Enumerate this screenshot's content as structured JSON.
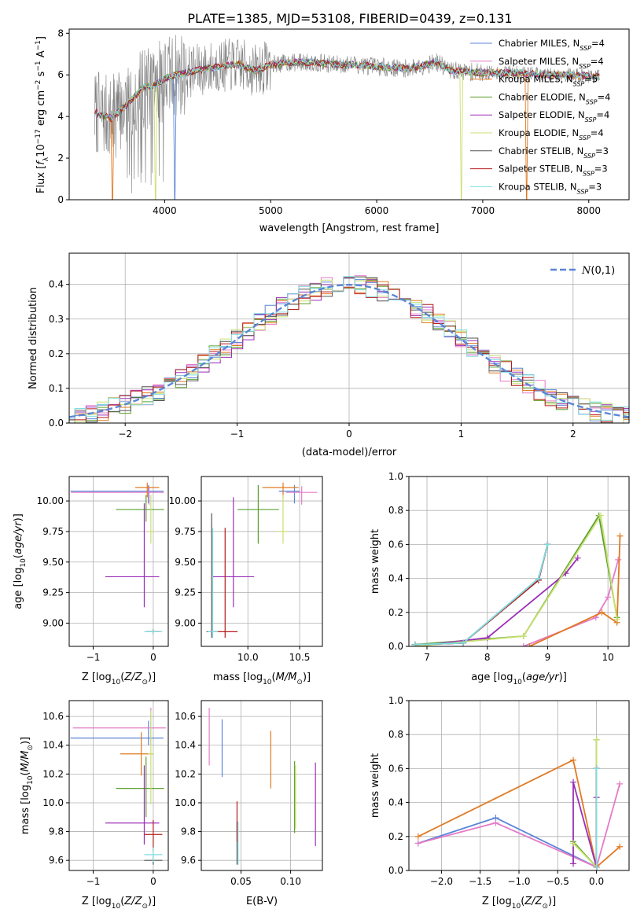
{
  "figure_title": "PLATE=1385, MJD=53108, FIBERID=0439, z=0.131",
  "colors": {
    "Chabrier MILES": "#5b86d6",
    "Salpeter MILES": "#e57bc8",
    "Kroupa MILES": "#e07a22",
    "Chabrier ELODIE": "#5aa02c",
    "Salpeter ELODIE": "#9b2fb8",
    "Kroupa ELODIE": "#c8e070",
    "Chabrier STELIB": "#555555",
    "Salpeter STELIB": "#b51b1b",
    "Kroupa STELIB": "#7fdde0",
    "observed": "#808080",
    "gaussian": "#5b86d6"
  },
  "chart_data": [
    {
      "id": "spectrum",
      "type": "line",
      "xlabel": "wavelength [Angstrom, rest frame]",
      "ylabel": "Flux [f_λ10^-17 erg cm^-2 s^-1 A^-1]",
      "xlim": [
        3100,
        8380
      ],
      "ylim": [
        0,
        8.2
      ],
      "xticks": [
        4000,
        5000,
        6000,
        7000,
        8000
      ],
      "yticks": [
        0,
        2,
        4,
        6,
        8
      ],
      "legend_position": "right",
      "legend": [
        {
          "model": "Chabrier MILES",
          "nssp": "4"
        },
        {
          "model": "Salpeter MILES",
          "nssp": "4"
        },
        {
          "model": "Kroupa MILES",
          "nssp": "5"
        },
        {
          "model": "Chabrier ELODIE",
          "nssp": "4"
        },
        {
          "model": "Salpeter ELODIE",
          "nssp": "4"
        },
        {
          "model": "Kroupa ELODIE",
          "nssp": "4"
        },
        {
          "model": "Chabrier STELIB",
          "nssp": "3"
        },
        {
          "model": "Salpeter STELIB",
          "nssp": "3"
        },
        {
          "model": "Kroupa STELIB",
          "nssp": "3"
        }
      ],
      "continuum_points": [
        [
          3340,
          4.2
        ],
        [
          3500,
          3.9
        ],
        [
          3650,
          4.6
        ],
        [
          3800,
          5.4
        ],
        [
          3900,
          5.5
        ],
        [
          4000,
          5.8
        ],
        [
          4100,
          6.0
        ],
        [
          4300,
          6.2
        ],
        [
          4500,
          6.4
        ],
        [
          4700,
          6.5
        ],
        [
          4861,
          6.2
        ],
        [
          5000,
          6.5
        ],
        [
          5200,
          6.6
        ],
        [
          5400,
          6.6
        ],
        [
          5600,
          6.5
        ],
        [
          5800,
          6.5
        ],
        [
          6000,
          6.4
        ],
        [
          6300,
          6.3
        ],
        [
          6563,
          6.6
        ],
        [
          6700,
          6.2
        ],
        [
          7000,
          6.1
        ],
        [
          7300,
          6.1
        ],
        [
          7600,
          6.0
        ],
        [
          7800,
          6.0
        ],
        [
          8100,
          5.9
        ]
      ],
      "noise_amplitude_blue": 2.6,
      "noise_amplitude_red": 0.9,
      "model_dropouts": [
        {
          "model": "Kroupa MILES",
          "x": 3510
        },
        {
          "model": "Kroupa ELODIE",
          "x": 3920
        },
        {
          "model": "Chabrier MILES",
          "x": 4100
        },
        {
          "model": "Kroupa ELODIE",
          "x": 6800
        },
        {
          "model": "Kroupa MILES",
          "x": 7420
        }
      ]
    },
    {
      "id": "residuals",
      "type": "step",
      "xlabel": "(data-model)/error",
      "ylabel": "Normed distribution",
      "xlim": [
        -2.5,
        2.5
      ],
      "ylim": [
        0,
        0.49
      ],
      "xticks": [
        -2,
        -1,
        0,
        1,
        2
      ],
      "yticks": [
        0.0,
        0.1,
        0.2,
        0.3,
        0.4
      ],
      "grid": true,
      "legend_position": "top-right",
      "legend": "N(0,1)",
      "bin_width": 0.1
    },
    {
      "id": "age_vs_Z",
      "type": "errorbar",
      "xlabel": "Z [log10(Z/Z⊙)]",
      "ylabel": "age  [log10(age/yr)]",
      "xlim": [
        -1.4,
        0.25
      ],
      "ylim": [
        8.81,
        10.2
      ],
      "xticks": [
        -1,
        0
      ],
      "yticks": [
        9.0,
        9.25,
        9.5,
        9.75,
        10.0
      ],
      "grid": true,
      "points": [
        {
          "model": "Chabrier MILES",
          "x": -0.08,
          "y": 10.08,
          "xerr": [
            1.3,
            0.25
          ],
          "yerr": [
            0.1,
            0.05
          ]
        },
        {
          "model": "Salpeter MILES",
          "x": -0.07,
          "y": 10.07,
          "xerr": [
            1.3,
            0.25
          ],
          "yerr": [
            0.1,
            0.05
          ]
        },
        {
          "model": "Kroupa MILES",
          "x": -0.1,
          "y": 10.11,
          "xerr": [
            0.2,
            0.2
          ],
          "yerr": [
            0.08,
            0.04
          ]
        },
        {
          "model": "Chabrier ELODIE",
          "x": -0.12,
          "y": 9.93,
          "xerr": [
            0.5,
            0.3
          ],
          "yerr": [
            0.1,
            0.12
          ]
        },
        {
          "model": "Salpeter ELODIE",
          "x": -0.15,
          "y": 9.38,
          "xerr": [
            0.65,
            0.25
          ],
          "yerr": [
            0.25,
            0.6
          ]
        },
        {
          "model": "Kroupa ELODIE",
          "x": -0.04,
          "y": 9.75,
          "xerr": [
            0.05,
            0.05
          ],
          "yerr": [
            0.1,
            0.3
          ]
        },
        {
          "model": "Chabrier STELIB",
          "x": 0.0,
          "y": 8.93,
          "xerr": [
            0.1,
            0.1
          ],
          "yerr": [
            0.02,
            0.02
          ]
        },
        {
          "model": "Salpeter STELIB",
          "x": 0.0,
          "y": 8.93,
          "xerr": [
            0.12,
            0.12
          ],
          "yerr": [
            0.02,
            0.02
          ]
        },
        {
          "model": "Kroupa STELIB",
          "x": 0.0,
          "y": 8.93,
          "xerr": [
            0.15,
            0.15
          ],
          "yerr": [
            0.02,
            0.02
          ]
        }
      ]
    },
    {
      "id": "age_vs_mass",
      "type": "errorbar",
      "xlabel": "mass [log10(M/M⊙)]",
      "ylabel": "",
      "xlim": [
        9.55,
        10.72
      ],
      "ylim": [
        8.81,
        10.2
      ],
      "xticks": [
        10.0,
        10.5
      ],
      "yticks": [
        9.0,
        9.25,
        9.5,
        9.75,
        10.0
      ],
      "grid": true,
      "points": [
        {
          "model": "Chabrier MILES",
          "x": 10.45,
          "y": 10.08,
          "xerr": [
            0.15,
            0.05
          ],
          "yerr": [
            0.1,
            0.05
          ]
        },
        {
          "model": "Salpeter MILES",
          "x": 10.52,
          "y": 10.07,
          "xerr": [
            0.15,
            0.15
          ],
          "yerr": [
            0.1,
            0.05
          ]
        },
        {
          "model": "Kroupa MILES",
          "x": 10.34,
          "y": 10.11,
          "xerr": [
            0.2,
            0.15
          ],
          "yerr": [
            0.08,
            0.04
          ]
        },
        {
          "model": "Chabrier ELODIE",
          "x": 10.1,
          "y": 9.93,
          "xerr": [
            0.2,
            0.2
          ],
          "yerr": [
            0.28,
            0.2
          ]
        },
        {
          "model": "Salpeter ELODIE",
          "x": 9.86,
          "y": 9.38,
          "xerr": [
            0.2,
            0.2
          ],
          "yerr": [
            0.25,
            0.65
          ]
        },
        {
          "model": "Kroupa ELODIE",
          "x": 10.34,
          "y": 9.75,
          "xerr": [
            0.05,
            0.05
          ],
          "yerr": [
            0.1,
            0.3
          ]
        },
        {
          "model": "Chabrier STELIB",
          "x": 9.65,
          "y": 8.93,
          "xerr": [
            0.05,
            0.05
          ],
          "yerr": [
            0.05,
            0.97
          ]
        },
        {
          "model": "Salpeter STELIB",
          "x": 9.78,
          "y": 8.93,
          "xerr": [
            0.1,
            0.12
          ],
          "yerr": [
            0.05,
            0.85
          ]
        },
        {
          "model": "Kroupa STELIB",
          "x": 9.66,
          "y": 8.93,
          "xerr": [
            0.05,
            0.05
          ],
          "yerr": [
            0.05,
            0.85
          ]
        }
      ]
    },
    {
      "id": "weight_vs_age",
      "type": "line",
      "xlabel": "age  [log10(age/yr)]",
      "ylabel": "mass weight",
      "xlim": [
        6.7,
        10.35
      ],
      "ylim": [
        0,
        1.0
      ],
      "xticks": [
        7,
        8,
        9,
        10
      ],
      "yticks": [
        0.0,
        0.2,
        0.4,
        0.6,
        0.8,
        1.0
      ],
      "grid": true,
      "series": [
        {
          "model": "Chabrier MILES",
          "x": [
            6.8,
            7.6,
            8.85,
            9.0
          ],
          "y": [
            0.01,
            0.02,
            0.4,
            0.6
          ]
        },
        {
          "model": "Salpeter MILES",
          "x": [
            8.6,
            9.8,
            10.0,
            10.17
          ],
          "y": [
            0.0,
            0.17,
            0.29,
            0.51
          ]
        },
        {
          "model": "Kroupa MILES",
          "x": [
            8.7,
            9.9,
            10.15,
            10.2
          ],
          "y": [
            0.0,
            0.2,
            0.14,
            0.65
          ]
        },
        {
          "model": "Chabrier ELODIE",
          "x": [
            6.8,
            8.6,
            9.85,
            10.15
          ],
          "y": [
            0.01,
            0.06,
            0.77,
            0.17
          ]
        },
        {
          "model": "Salpeter ELODIE",
          "x": [
            6.8,
            8.0,
            9.3,
            9.5
          ],
          "y": [
            0.0,
            0.05,
            0.43,
            0.52
          ]
        },
        {
          "model": "Kroupa ELODIE",
          "x": [
            6.8,
            8.6,
            9.88,
            10.15
          ],
          "y": [
            0.0,
            0.06,
            0.77,
            0.16
          ]
        },
        {
          "model": "Chabrier STELIB",
          "x": [
            6.8,
            7.6,
            8.85,
            9.0
          ],
          "y": [
            0.01,
            0.02,
            0.39,
            0.6
          ]
        },
        {
          "model": "Salpeter STELIB",
          "x": [
            6.8,
            7.6,
            8.85,
            9.0
          ],
          "y": [
            0.01,
            0.02,
            0.39,
            0.6
          ]
        },
        {
          "model": "Kroupa STELIB",
          "x": [
            6.8,
            7.6,
            8.85,
            9.0
          ],
          "y": [
            0.01,
            0.02,
            0.4,
            0.6
          ]
        }
      ]
    },
    {
      "id": "mass_vs_Z",
      "type": "errorbar",
      "xlabel": "Z [log10(Z/Z⊙)]",
      "ylabel": "mass [log10(M/M⊙)]",
      "xlim": [
        -1.4,
        0.25
      ],
      "ylim": [
        9.53,
        10.71
      ],
      "xticks": [
        -1,
        0
      ],
      "yticks": [
        9.6,
        9.8,
        10.0,
        10.2,
        10.4,
        10.6
      ],
      "grid": true,
      "points": [
        {
          "model": "Chabrier MILES",
          "x": -0.08,
          "y": 10.45,
          "xerr": [
            1.3,
            0.25
          ],
          "yerr": [
            0.05,
            0.12
          ]
        },
        {
          "model": "Salpeter MILES",
          "x": -0.04,
          "y": 10.52,
          "xerr": [
            1.3,
            0.25
          ],
          "yerr": [
            0.12,
            0.14
          ]
        },
        {
          "model": "Kroupa MILES",
          "x": -0.2,
          "y": 10.34,
          "xerr": [
            0.35,
            0.2
          ],
          "yerr": [
            0.15,
            0.15
          ]
        },
        {
          "model": "Chabrier ELODIE",
          "x": -0.12,
          "y": 10.1,
          "xerr": [
            0.5,
            0.3
          ],
          "yerr": [
            0.2,
            0.22
          ]
        },
        {
          "model": "Salpeter ELODIE",
          "x": -0.15,
          "y": 9.86,
          "xerr": [
            0.65,
            0.25
          ],
          "yerr": [
            0.15,
            0.4
          ]
        },
        {
          "model": "Kroupa ELODIE",
          "x": -0.04,
          "y": 10.34,
          "xerr": [
            0.05,
            0.05
          ],
          "yerr": [
            0.35,
            0.3
          ]
        },
        {
          "model": "Chabrier STELIB",
          "x": 0.0,
          "y": 9.6,
          "xerr": [
            0.15,
            0.15
          ],
          "yerr": [
            0.03,
            0.03
          ]
        },
        {
          "model": "Salpeter STELIB",
          "x": 0.0,
          "y": 9.78,
          "xerr": [
            0.15,
            0.15
          ],
          "yerr": [
            0.12,
            0.1
          ]
        },
        {
          "model": "Kroupa STELIB",
          "x": 0.0,
          "y": 9.64,
          "xerr": [
            0.15,
            0.15
          ],
          "yerr": [
            0.05,
            0.05
          ]
        }
      ]
    },
    {
      "id": "mass_vs_EBV",
      "type": "errorbar",
      "xlabel": "E(B-V)",
      "ylabel": "",
      "xlim": [
        0.01,
        0.132
      ],
      "ylim": [
        9.53,
        10.71
      ],
      "xticks": [
        0.05,
        0.1
      ],
      "yticks": [
        9.6,
        9.8,
        10.0,
        10.2,
        10.4,
        10.6
      ],
      "grid": true,
      "points": [
        {
          "model": "Chabrier MILES",
          "x": 0.031,
          "y": 10.38,
          "xerr": [
            0,
            0
          ],
          "yerr": [
            0.2,
            0.2
          ]
        },
        {
          "model": "Salpeter MILES",
          "x": 0.018,
          "y": 10.46,
          "xerr": [
            0,
            0
          ],
          "yerr": [
            0.2,
            0.2
          ]
        },
        {
          "model": "Kroupa MILES",
          "x": 0.08,
          "y": 10.3,
          "xerr": [
            0,
            0
          ],
          "yerr": [
            0.2,
            0.2
          ]
        },
        {
          "model": "Chabrier ELODIE",
          "x": 0.104,
          "y": 10.04,
          "xerr": [
            0,
            0
          ],
          "yerr": [
            0.25,
            0.25
          ]
        },
        {
          "model": "Salpeter ELODIE",
          "x": 0.125,
          "y": 9.99,
          "xerr": [
            0,
            0
          ],
          "yerr": [
            0.29,
            0.29
          ]
        },
        {
          "model": "Kroupa ELODIE",
          "x": 0.105,
          "y": 10.04,
          "xerr": [
            0,
            0
          ],
          "yerr": [
            0.22,
            0.22
          ]
        },
        {
          "model": "Chabrier STELIB",
          "x": 0.046,
          "y": 9.72,
          "xerr": [
            0,
            0
          ],
          "yerr": [
            0.15,
            0.15
          ]
        },
        {
          "model": "Salpeter STELIB",
          "x": 0.046,
          "y": 9.87,
          "xerr": [
            0,
            0
          ],
          "yerr": [
            0.14,
            0.14
          ]
        },
        {
          "model": "Kroupa STELIB",
          "x": 0.047,
          "y": 9.72,
          "xerr": [
            0,
            0
          ],
          "yerr": [
            0.15,
            0.15
          ]
        }
      ]
    },
    {
      "id": "weight_vs_Z",
      "type": "line",
      "xlabel": "Z [log10(Z/Z⊙)]",
      "ylabel": "mass weight",
      "xlim": [
        -2.42,
        0.42
      ],
      "ylim": [
        0,
        1.0
      ],
      "xticks": [
        -2.0,
        -1.5,
        -1.0,
        -0.5,
        0.0
      ],
      "yticks": [
        0.0,
        0.2,
        0.4,
        0.6,
        0.8,
        1.0
      ],
      "grid": true,
      "series": [
        {
          "model": "Chabrier MILES",
          "x": [
            -2.3,
            -1.3,
            0.0,
            0.0
          ],
          "y": [
            0.16,
            0.31,
            0.02,
            0.6
          ]
        },
        {
          "model": "Salpeter MILES",
          "x": [
            -2.3,
            -1.3,
            0.0,
            0.3
          ],
          "y": [
            0.16,
            0.28,
            0.02,
            0.51
          ]
        },
        {
          "model": "Kroupa MILES",
          "x": [
            -2.3,
            -0.3,
            0.0,
            0.3
          ],
          "y": [
            0.2,
            0.65,
            0.02,
            0.14
          ]
        },
        {
          "model": "Chabrier ELODIE",
          "x": [
            -0.3,
            0.0,
            0.0
          ],
          "y": [
            0.17,
            0.02,
            0.77
          ]
        },
        {
          "model": "Salpeter ELODIE",
          "x": [
            -0.3,
            -0.3,
            0.0,
            0.0
          ],
          "y": [
            0.04,
            0.52,
            0.02,
            0.43
          ]
        },
        {
          "model": "Kroupa ELODIE",
          "x": [
            -0.3,
            0.0,
            0.0
          ],
          "y": [
            0.16,
            0.02,
            0.77
          ]
        },
        {
          "model": "Chabrier STELIB",
          "x": [
            0.0,
            0.0
          ],
          "y": [
            0.02,
            0.6
          ]
        },
        {
          "model": "Salpeter STELIB",
          "x": [
            0.0,
            0.0
          ],
          "y": [
            0.02,
            0.6
          ]
        },
        {
          "model": "Kroupa STELIB",
          "x": [
            0.0,
            0.0
          ],
          "y": [
            0.02,
            0.6
          ]
        }
      ]
    }
  ]
}
